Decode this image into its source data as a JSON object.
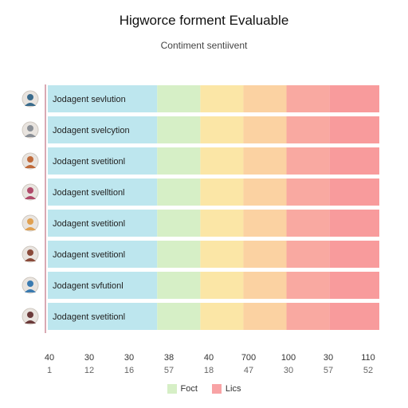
{
  "chart_data": {
    "type": "bar",
    "title": "Higworce forment Evaluable",
    "subtitle": "Contiment sentiivent",
    "rows": [
      {
        "label": "Jodagent sevlution"
      },
      {
        "label": "Jodagent svelcytion"
      },
      {
        "label": "Jodagent svetitionl"
      },
      {
        "label": "Jodagent svelltionl"
      },
      {
        "label": "Jodagent svetitionl"
      },
      {
        "label": "Jodagent svetitionl"
      },
      {
        "label": "Jodagent svfutionl"
      },
      {
        "label": "Jodagent svetitionl"
      }
    ],
    "segments": [
      {
        "color": "#bde6ee"
      },
      {
        "color": "#d6efc6"
      },
      {
        "color": "#fbe6a6"
      },
      {
        "color": "#fbd2a2"
      },
      {
        "color": "#f9a9a1"
      },
      {
        "color": "#f89b9c"
      }
    ],
    "segment_widths": [
      0.33,
      0.13,
      0.13,
      0.13,
      0.13,
      0.15
    ],
    "x_ticks_top": [
      "40",
      "30",
      "30",
      "38",
      "40",
      "700",
      "100",
      "30",
      "110"
    ],
    "x_ticks_bottom": [
      "1",
      "12",
      "16",
      "57",
      "18",
      "47",
      "30",
      "57",
      "52"
    ],
    "legend": [
      {
        "label": "Foct",
        "color": "#d6efc6"
      },
      {
        "label": "Lics",
        "color": "#f8a3a5"
      }
    ],
    "avatar_colors": [
      "#3a6b8c",
      "#8a8f96",
      "#c06a3a",
      "#b04a6a",
      "#e0a050",
      "#8a4a3a",
      "#3a7ab0",
      "#6b3a3a"
    ]
  }
}
